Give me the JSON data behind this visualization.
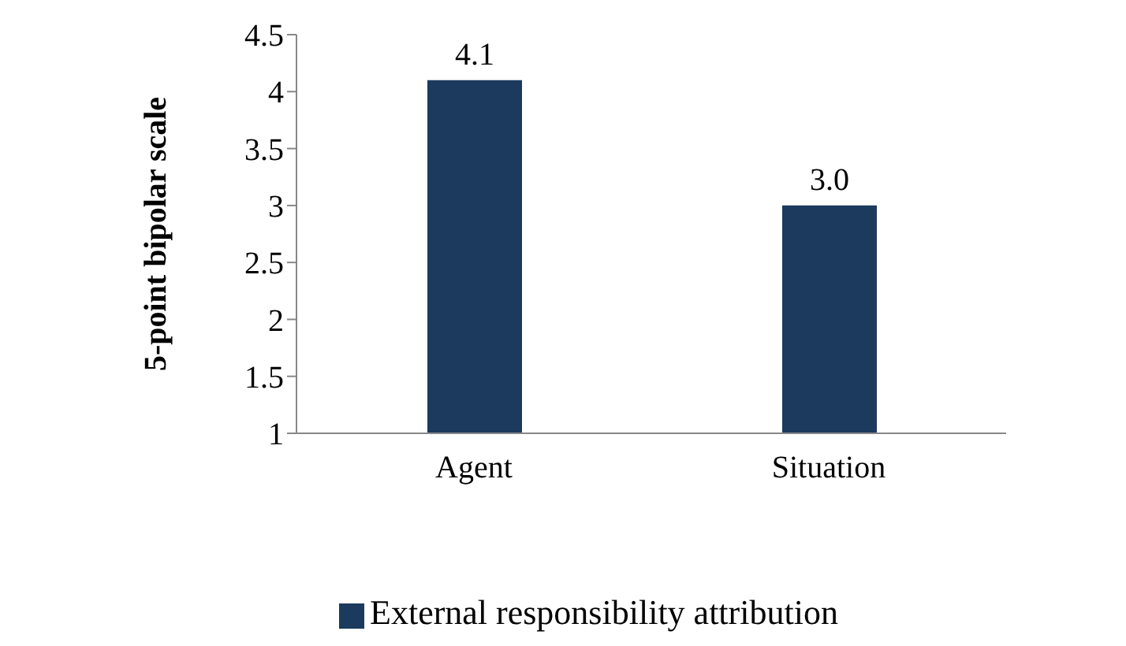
{
  "chart_data": {
    "type": "bar",
    "ylabel": "5-point bipolar scale",
    "categories": [
      "Agent",
      "Situation"
    ],
    "series": [
      {
        "name": "External responsibility attribution",
        "color": "#1b3a5e",
        "values": [
          4.1,
          3.0
        ],
        "value_labels": [
          "4.1",
          "3.0"
        ]
      }
    ],
    "ylim": [
      1,
      4.5
    ],
    "yticks": [
      1,
      1.5,
      2,
      2.5,
      3,
      3.5,
      4,
      4.5
    ],
    "grid": false,
    "legend": "bottom"
  }
}
